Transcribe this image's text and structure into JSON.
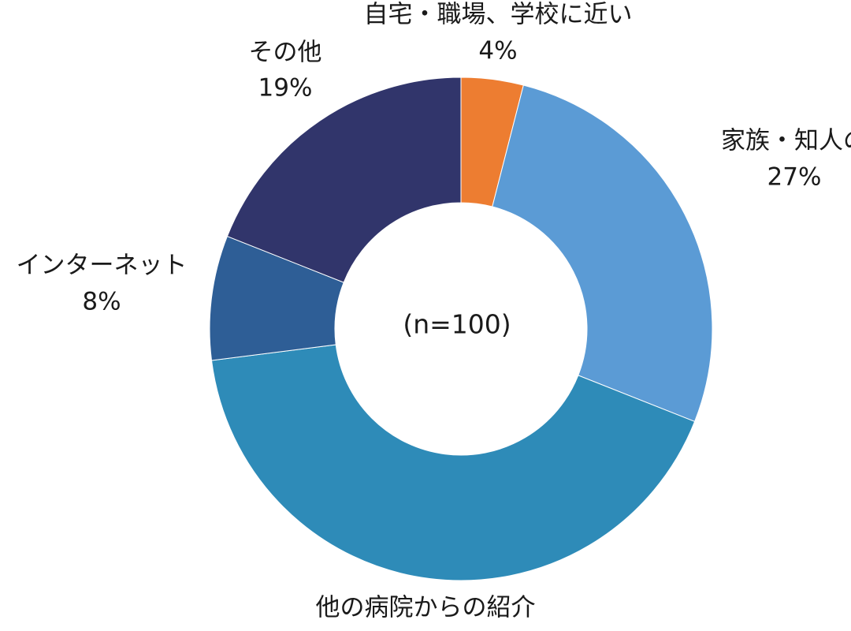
{
  "chart_data": {
    "type": "pie",
    "variant": "donut",
    "center_label": "(n=100)",
    "start_angle_deg": 0,
    "direction": "clockwise",
    "slices": [
      {
        "label": "自宅・職場、学校に近い",
        "value": 4,
        "value_label": "4%",
        "color": "#ED7D31"
      },
      {
        "label": "家族・知人の",
        "value": 27,
        "value_label": "27%",
        "color": "#5B9BD5"
      },
      {
        "label": "他の病院からの紹介",
        "value": 42,
        "value_label": "",
        "color": "#2E8BB8"
      },
      {
        "label": "インターネット",
        "value": 8,
        "value_label": "8%",
        "color": "#2E5E96"
      },
      {
        "label": "その他",
        "value": 19,
        "value_label": "19%",
        "color": "#31356B"
      }
    ]
  }
}
